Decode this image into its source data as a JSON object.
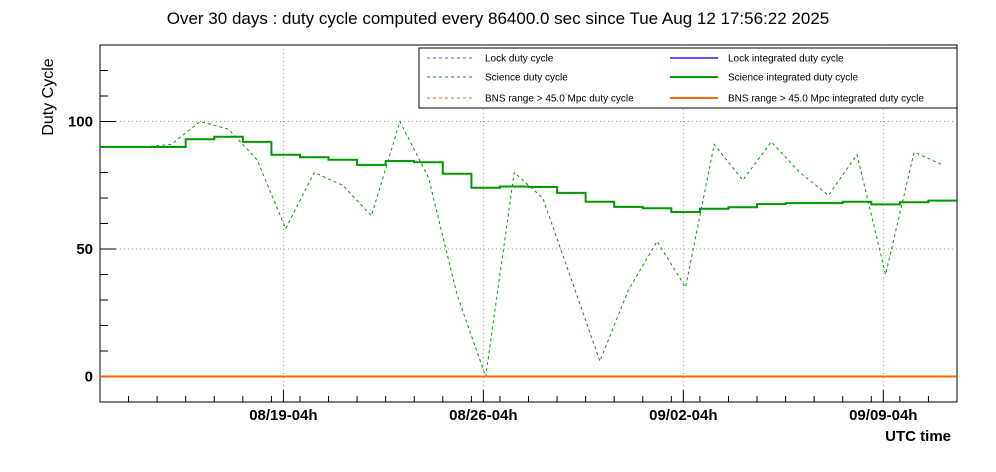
{
  "chart_data": {
    "type": "line",
    "title": "Over 30 days : duty cycle computed every 86400.0 sec since Tue Aug 12 17:56:22 2025",
    "xlabel": "UTC time",
    "ylabel": "Duty Cycle",
    "xlim_days_since_start": [
      0,
      30
    ],
    "ylim": [
      -10,
      130
    ],
    "yticks": [
      0,
      50,
      100
    ],
    "xticks": [
      {
        "label": "08/19-04h",
        "day": 6.42
      },
      {
        "label": "08/26-04h",
        "day": 13.42
      },
      {
        "label": "09/02-04h",
        "day": 20.42
      },
      {
        "label": "09/09-04h",
        "day": 27.42
      }
    ],
    "grid": true,
    "legend_position": "top-right",
    "colors": {
      "lock": "#5a5aff",
      "science": "#009900",
      "bns": "#ff6600",
      "grid": "#999999"
    },
    "series": [
      {
        "name": "Lock duty cycle",
        "style": "dashed",
        "color": "#5a5aff",
        "x": [],
        "values": []
      },
      {
        "name": "Lock integrated duty cycle",
        "style": "solid",
        "color": "#5a5aff",
        "x": [],
        "values": []
      },
      {
        "name": "Science duty cycle",
        "style": "dashed",
        "color": "#009900",
        "x": [
          0.5,
          1.5,
          2.5,
          3.5,
          4.5,
          5.5,
          6.5,
          7.5,
          8.5,
          9.5,
          10.5,
          11.5,
          12.5,
          13.5,
          14.5,
          15.5,
          16.5,
          17.5,
          18.5,
          19.5,
          20.5,
          21.5,
          22.5,
          23.5,
          24.5,
          25.5,
          26.5,
          27.5,
          28.5,
          29.5
        ],
        "values": [
          90,
          90,
          91,
          100,
          97,
          85,
          58,
          80,
          75,
          63,
          100,
          78,
          32,
          0,
          80,
          70,
          38,
          6,
          34,
          53,
          35,
          91,
          77,
          92,
          80,
          71,
          87,
          40,
          88,
          83
        ]
      },
      {
        "name": "Science integrated duty cycle",
        "style": "solid",
        "color": "#009900",
        "x": [
          0,
          1,
          2,
          3,
          4,
          5,
          6,
          7,
          8,
          9,
          10,
          11,
          12,
          13,
          14,
          15,
          16,
          17,
          18,
          19,
          20,
          21,
          22,
          23,
          24,
          25,
          26,
          27,
          28,
          29,
          30
        ],
        "values": [
          90,
          90,
          90,
          93,
          94,
          92,
          87,
          86,
          85,
          83,
          84.5,
          84,
          79.5,
          74,
          74.5,
          74.3,
          72,
          68.5,
          66.5,
          66,
          64.5,
          65.8,
          66.4,
          67.6,
          68,
          68,
          68.5,
          67.5,
          68.3,
          69,
          69
        ]
      },
      {
        "name": "BNS range > 45.0 Mpc duty cycle",
        "style": "dashed",
        "color": "#ff6600",
        "x": [
          0,
          30
        ],
        "values": [
          0,
          0
        ]
      },
      {
        "name": "BNS range > 45.0 Mpc integrated duty cycle",
        "style": "solid",
        "color": "#ff6600",
        "x": [
          0,
          30
        ],
        "values": [
          0,
          0
        ]
      }
    ]
  }
}
